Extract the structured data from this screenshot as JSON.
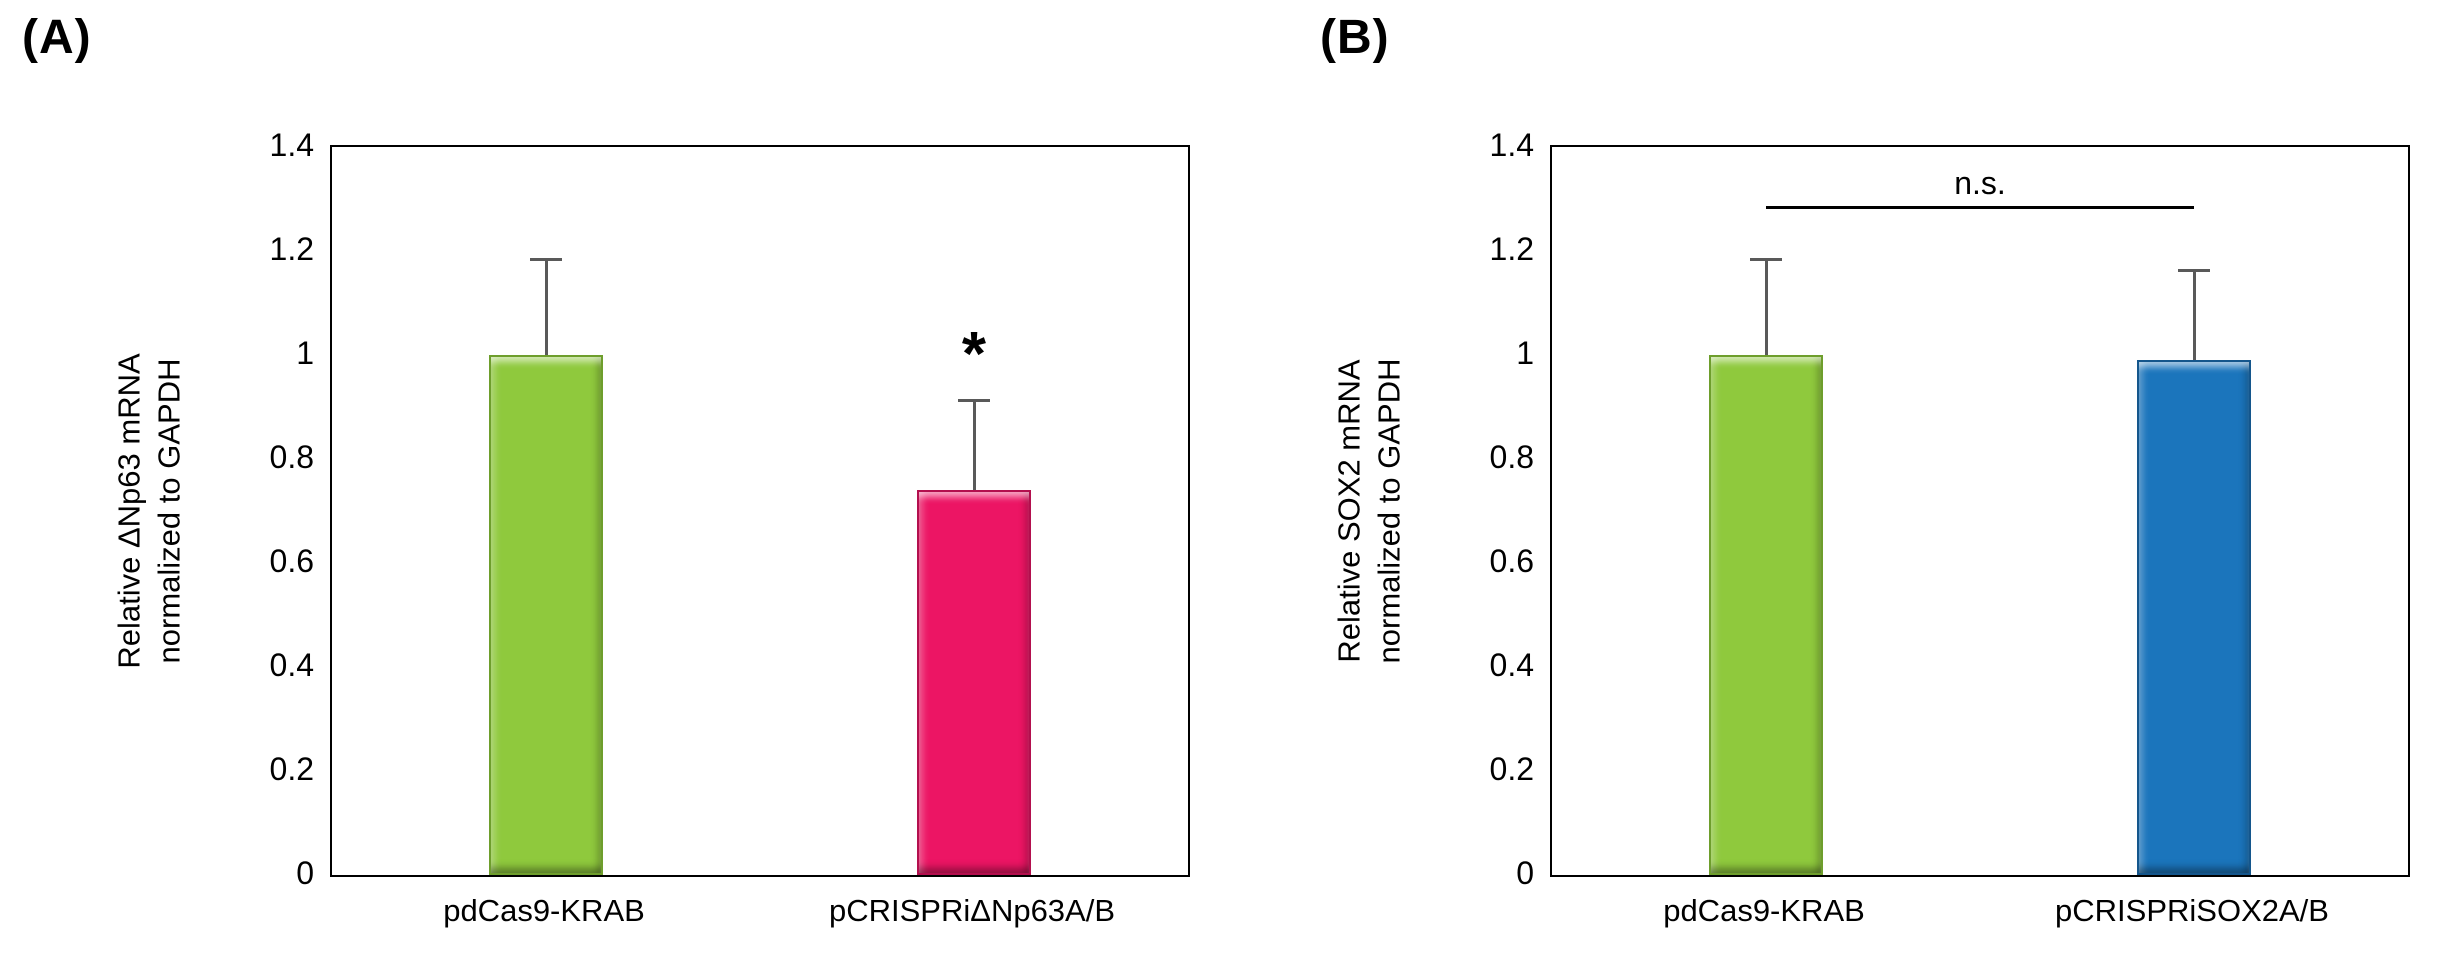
{
  "error_bar_color": "#595959",
  "chart_data": [
    {
      "type": "bar",
      "panel_label": "(A)",
      "title": "",
      "ylabel": "Relative ΔNp63 mRNA normalized to GAPDH",
      "ylabel_lines": [
        "Relative ΔNp63 mRNA",
        "normalized to GAPDH"
      ],
      "xlabel": "",
      "categories": [
        "pdCas9-KRAB",
        "pCRISPRiΔNp63A/B"
      ],
      "values": [
        1.0,
        0.74
      ],
      "errors_upper": [
        0.18,
        0.17
      ],
      "ylim": [
        0,
        1.4
      ],
      "ytick_values": [
        0,
        0.2,
        0.4,
        0.6,
        0.8,
        1.0,
        1.2,
        1.4
      ],
      "ytick_labels": [
        "0",
        "0.2",
        "0.4",
        "0.6",
        "0.8",
        "1",
        "1.2",
        "1.4"
      ],
      "bar_colors": [
        "#8FC93D",
        "#EC1564"
      ],
      "bar_border_colors": [
        "#6E9E2C",
        "#B30F4E"
      ],
      "grid": false,
      "legend": null,
      "annotation": {
        "type": "star",
        "label": "*",
        "bar_index": 1
      }
    },
    {
      "type": "bar",
      "panel_label": "(B)",
      "title": "",
      "ylabel": "Relative SOX2 mRNA normalized to GAPDH",
      "ylabel_lines": [
        "Relative SOX2 mRNA",
        "normalized to GAPDH"
      ],
      "xlabel": "",
      "categories": [
        "pdCas9-KRAB",
        "pCRISPRiSOX2A/B"
      ],
      "values": [
        1.0,
        0.99
      ],
      "errors_upper": [
        0.18,
        0.17
      ],
      "ylim": [
        0,
        1.4
      ],
      "ytick_values": [
        0,
        0.2,
        0.4,
        0.6,
        0.8,
        1.0,
        1.2,
        1.4
      ],
      "ytick_labels": [
        "0",
        "0.2",
        "0.4",
        "0.6",
        "0.8",
        "1",
        "1.2",
        "1.4"
      ],
      "bar_colors": [
        "#8FC93D",
        "#1B75BC"
      ],
      "bar_border_colors": [
        "#6E9E2C",
        "#14568C"
      ],
      "grid": false,
      "legend": null,
      "annotation": {
        "type": "ns_bracket",
        "label": "n.s.",
        "y": 1.28
      }
    }
  ]
}
